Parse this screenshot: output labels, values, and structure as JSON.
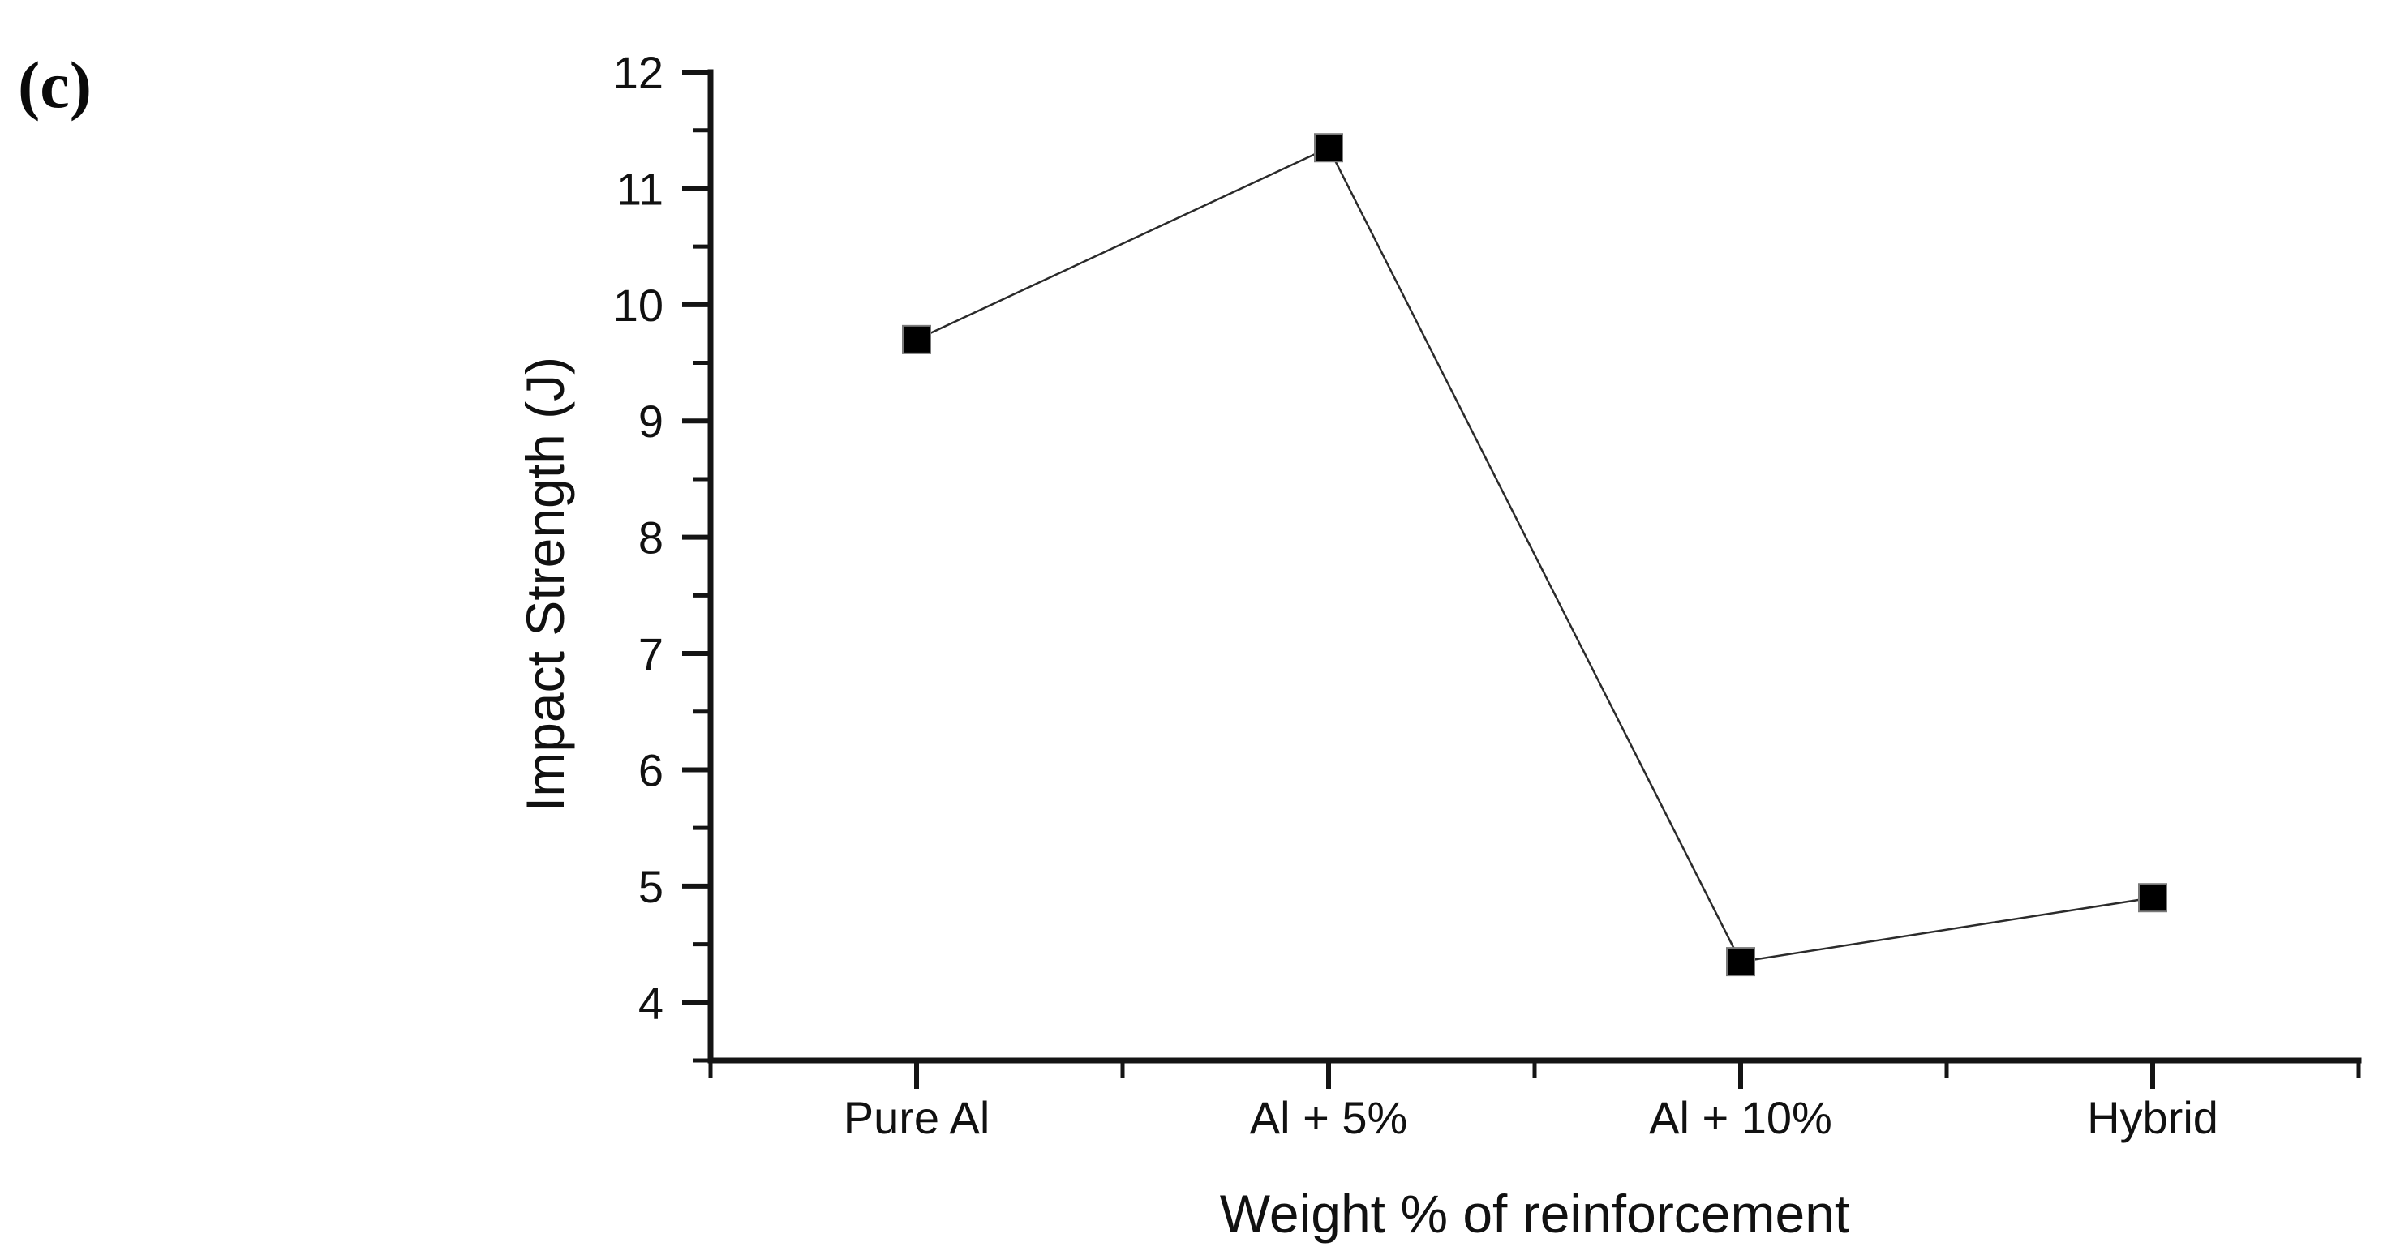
{
  "panel_label": "(c)",
  "chart_data": {
    "type": "line",
    "categories": [
      "Pure Al",
      "Al + 5%",
      "Al + 10%",
      "Hybrid"
    ],
    "series": [
      {
        "name": "Impact Strength",
        "values": [
          9.7,
          11.35,
          4.35,
          4.9
        ]
      }
    ],
    "title": "",
    "xlabel": "Weight % of reinforcement",
    "ylabel": "Impact Strength (J)",
    "ylim": [
      3.5,
      12
    ],
    "y_major_ticks": [
      4,
      5,
      6,
      7,
      8,
      9,
      10,
      11,
      12
    ],
    "y_minor_ticks": [
      3.5,
      4.5,
      5.5,
      6.5,
      7.5,
      8.5,
      9.5,
      10.5,
      11.5
    ],
    "x_minor_boundaries": [
      0,
      0.25,
      0.5,
      0.75,
      1
    ],
    "grid": false,
    "legend": false,
    "marker": "square",
    "marker_color": "#000000",
    "line_color": "#2b2b2b",
    "axis_color": "#141414",
    "text_color": "#111111"
  }
}
